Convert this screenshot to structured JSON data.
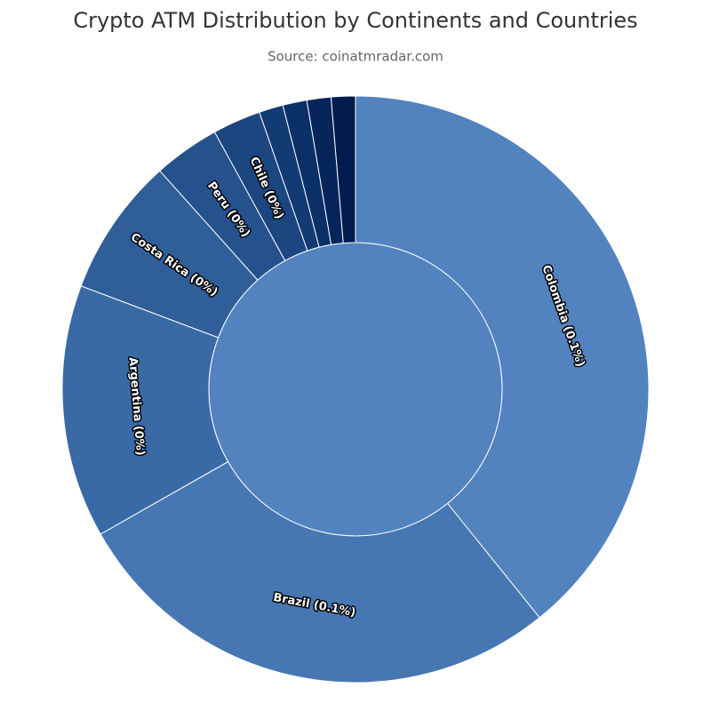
{
  "chart_data": {
    "type": "sunburst",
    "title": "Crypto ATM Distribution by Continents and Countries",
    "subtitle": "Source: coinatmradar.com",
    "center_color": "#5283be",
    "categories": [
      "Colombia (0.1%)",
      "Brazil (0.1%)",
      "Argentina (0%)",
      "Costa Rica (0%)",
      "Peru (0%)",
      "Chile (0%)",
      null,
      null,
      null,
      null
    ],
    "values": [
      0.118,
      0.083,
      0.042,
      0.023,
      0.011,
      0.008,
      0.004,
      0.004,
      0.004,
      0.004
    ],
    "colors": [
      "#5283be",
      "#4677b2",
      "#3a6aa6",
      "#2f5e99",
      "#25528c",
      "#1b4680",
      "#123a73",
      "#0b2f67",
      "#06255b",
      "#021c4f"
    ]
  }
}
